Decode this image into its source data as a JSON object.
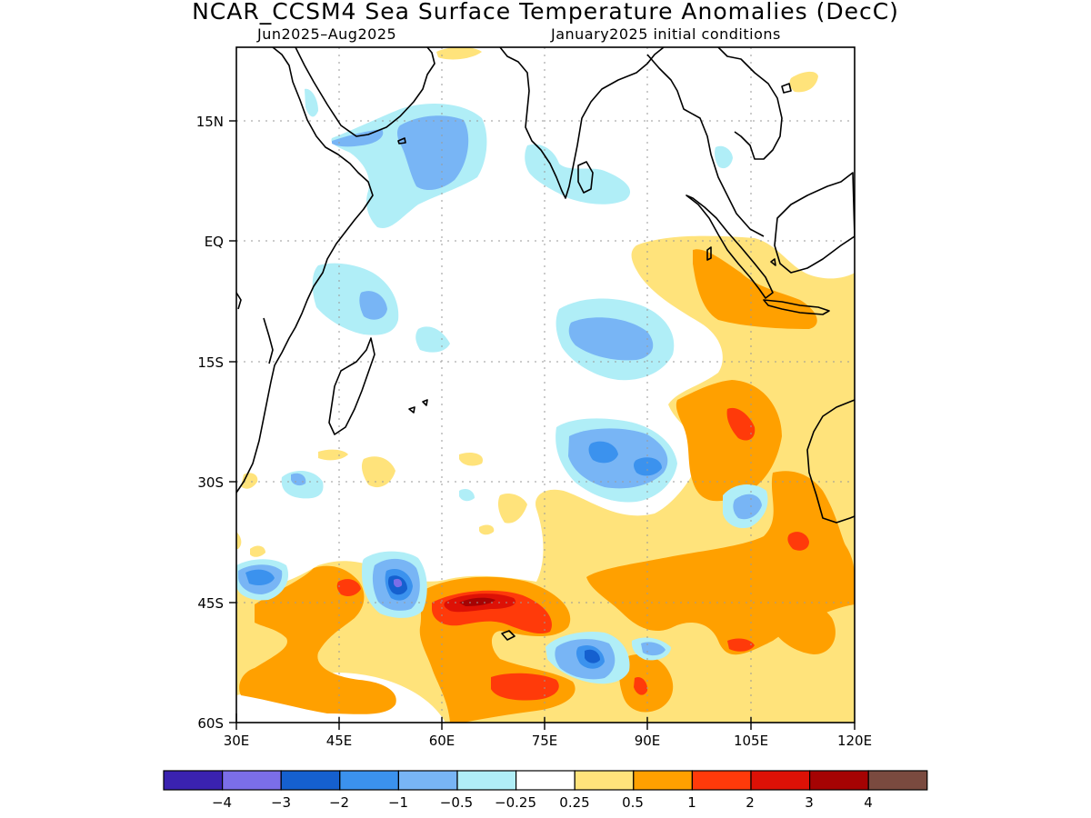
{
  "header": {
    "title": "NCAR_CCSM4 Sea Surface Temperature Anomalies (DecC)",
    "period": "Jun2025–Aug2025",
    "init": "January2025 initial conditions"
  },
  "map": {
    "lon_range": [
      30,
      120
    ],
    "lat_range": [
      -60,
      24
    ],
    "lon_ticks": [
      "30E",
      "45E",
      "60E",
      "75E",
      "90E",
      "105E",
      "120E"
    ],
    "lat_ticks": [
      "15N",
      "EQ",
      "15S",
      "30S",
      "45S",
      "60S"
    ],
    "grid": "dotted"
  },
  "colorbar": {
    "colors": [
      "#3a22b0",
      "#7b6ee8",
      "#1560cf",
      "#3b92ee",
      "#78b5f5",
      "#b0eef7",
      "#ffffff",
      "#ffe37b",
      "#ffa000",
      "#ff3a0a",
      "#dd1106",
      "#a50303",
      "#7a4a3f"
    ],
    "labels": [
      "−4",
      "−3",
      "−2",
      "−1",
      "−0.5",
      "−0.25",
      "0.25",
      "0.5",
      "1",
      "2",
      "3",
      "4"
    ]
  }
}
